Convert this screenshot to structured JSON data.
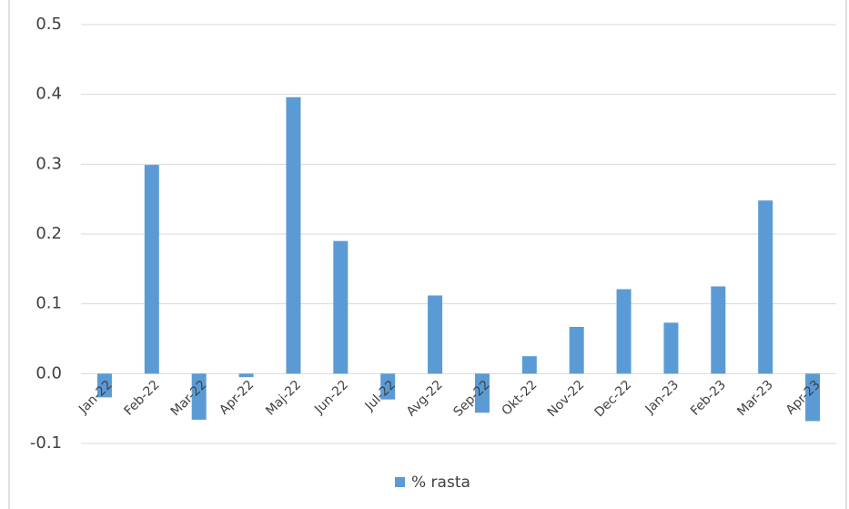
{
  "chart_data": {
    "type": "bar",
    "categories": [
      "Jan-22",
      "Feb-22",
      "Mar-22",
      "Apr-22",
      "Maj-22",
      "Jun-22",
      "Jul-22",
      "Avg-22",
      "Sep-22",
      "Okt-22",
      "Nov-22",
      "Dec-22",
      "Jan-23",
      "Feb-23",
      "Mar-23",
      "Apr-23"
    ],
    "series": [
      {
        "name": "% rasta",
        "color": "#5b9bd5",
        "values": [
          -0.034,
          0.299,
          -0.066,
          -0.005,
          0.396,
          0.19,
          -0.037,
          0.112,
          -0.056,
          0.025,
          0.067,
          0.121,
          0.073,
          0.125,
          0.248,
          -0.068
        ]
      }
    ],
    "ylim": [
      -0.1,
      0.5
    ],
    "yticks": [
      -0.1,
      {
        "value": 0,
        "label": "0.0"
      },
      0.1,
      0.2,
      0.3,
      0.4,
      0.5
    ],
    "grid": true,
    "legend": "bottom"
  }
}
